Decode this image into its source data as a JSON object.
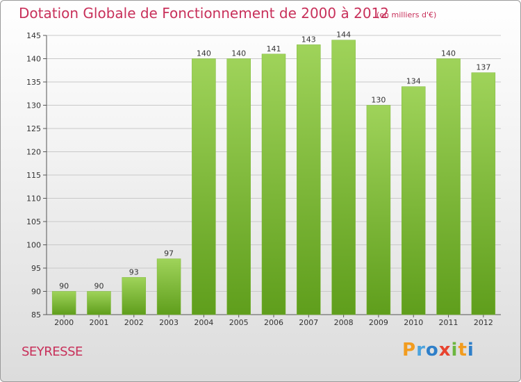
{
  "title": "Dotation Globale de Fonctionnement de 2000 à 2012",
  "unit_note": "(en milliers d'€)",
  "commune": "SEYRESSE",
  "logo": {
    "letters": [
      "P",
      "r",
      "o",
      "x",
      "i",
      "t",
      "i"
    ],
    "colors": [
      "#f29c1f",
      "#4ba3de",
      "#2e7fc9",
      "#e8432f",
      "#6cb63f",
      "#f29c1f",
      "#2e7fc9"
    ]
  },
  "colors": {
    "bar_top": "#9fd35a",
    "bar_bottom": "#5f9e1c",
    "title": "#c8305a",
    "grid": "#c8c8c8"
  },
  "chart_data": {
    "type": "bar",
    "title": "Dotation Globale de Fonctionnement de 2000 à 2012",
    "xlabel": "",
    "ylabel": "",
    "categories": [
      "2000",
      "2001",
      "2002",
      "2003",
      "2004",
      "2005",
      "2006",
      "2007",
      "2008",
      "2009",
      "2010",
      "2011",
      "2012"
    ],
    "values": [
      90,
      90,
      93,
      97,
      140,
      140,
      141,
      143,
      144,
      130,
      134,
      140,
      137
    ],
    "ylim": [
      85,
      145
    ],
    "yticks": [
      85,
      90,
      95,
      100,
      105,
      110,
      115,
      120,
      125,
      130,
      135,
      140,
      145
    ],
    "grid": true
  }
}
